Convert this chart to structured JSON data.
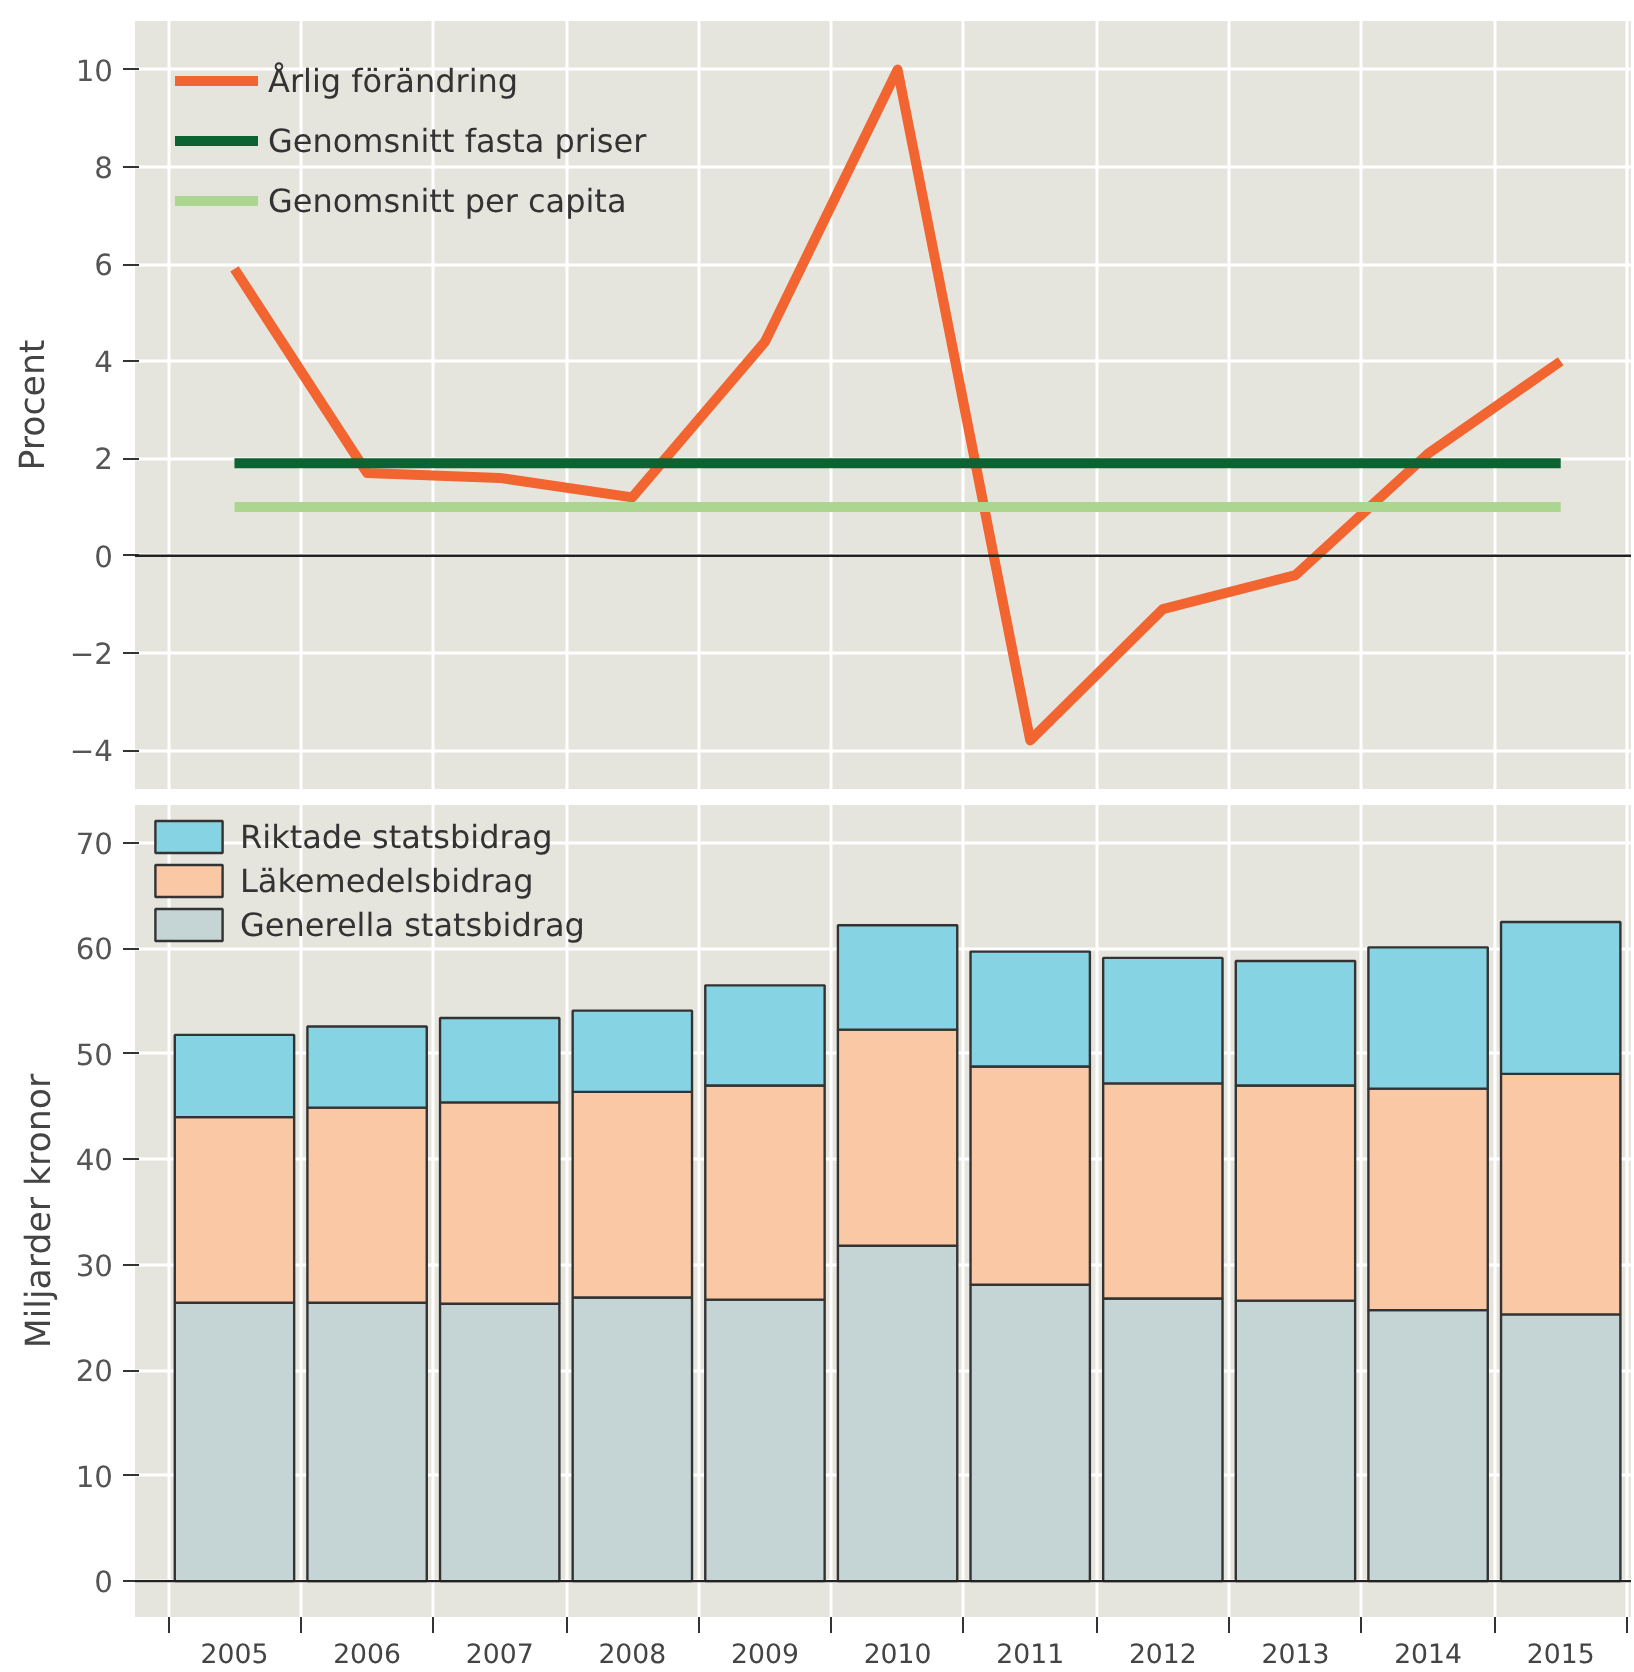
{
  "chart_data": [
    {
      "type": "line",
      "ylabel": "Procent",
      "categories": [
        "2005",
        "2006",
        "2007",
        "2008",
        "2009",
        "2010",
        "2011",
        "2012",
        "2013",
        "2014",
        "2015"
      ],
      "series": [
        {
          "name": "Årlig förändring",
          "color": "#f26430",
          "values": [
            5.9,
            1.7,
            1.6,
            1.2,
            4.4,
            10.0,
            -3.8,
            -1.1,
            -0.4,
            2.1,
            4.0
          ]
        },
        {
          "name": "Genomsnitt fasta priser",
          "color": "#0b6331",
          "values": [
            1.9,
            1.9,
            1.9,
            1.9,
            1.9,
            1.9,
            1.9,
            1.9,
            1.9,
            1.9,
            1.9
          ]
        },
        {
          "name": "Genomsnitt per capita",
          "color": "#acd68f",
          "values": [
            1.0,
            1.0,
            1.0,
            1.0,
            1.0,
            1.0,
            1.0,
            1.0,
            1.0,
            1.0,
            1.0
          ]
        }
      ],
      "ylim": [
        -4.8,
        11.0
      ],
      "yticks": [
        -4,
        -2,
        0,
        2,
        4,
        6,
        8,
        10
      ],
      "ref_lines": [
        {
          "axis": "y",
          "value": 0,
          "color": "#222222"
        }
      ],
      "grid": true,
      "legend": "top left",
      "tick_labels": "y",
      "marker": "none",
      "line_style": "solid"
    },
    {
      "type": "bar",
      "stacked": true,
      "ylabel": "Miljarder kronor",
      "categories": [
        "2005",
        "2006",
        "2007",
        "2008",
        "2009",
        "2010",
        "2011",
        "2012",
        "2013",
        "2014",
        "2015"
      ],
      "series": [
        {
          "name": "Generella statsbidrag",
          "color": "#c5d5d5",
          "values": [
            26.4,
            26.4,
            26.3,
            26.9,
            26.7,
            31.8,
            28.1,
            26.8,
            26.6,
            25.7,
            25.3
          ]
        },
        {
          "name": "Läkemedelsbidrag",
          "color": "#fbc8a6",
          "values": [
            17.6,
            18.5,
            19.1,
            19.5,
            20.3,
            20.5,
            20.7,
            20.4,
            20.4,
            21.0,
            22.8
          ]
        },
        {
          "name": "Riktade statsbidrag",
          "color": "#86d3e3",
          "values": [
            7.8,
            7.7,
            8.0,
            7.7,
            9.5,
            9.9,
            10.9,
            11.9,
            11.8,
            13.4,
            14.4
          ]
        }
      ],
      "ylim": [
        -3.4,
        73.6
      ],
      "yticks": [
        0,
        10,
        20,
        30,
        40,
        50,
        60,
        70
      ],
      "ref_lines": [
        {
          "axis": "y",
          "value": 0,
          "color": "#222222"
        }
      ],
      "grid": true,
      "legend": "top left"
    }
  ]
}
